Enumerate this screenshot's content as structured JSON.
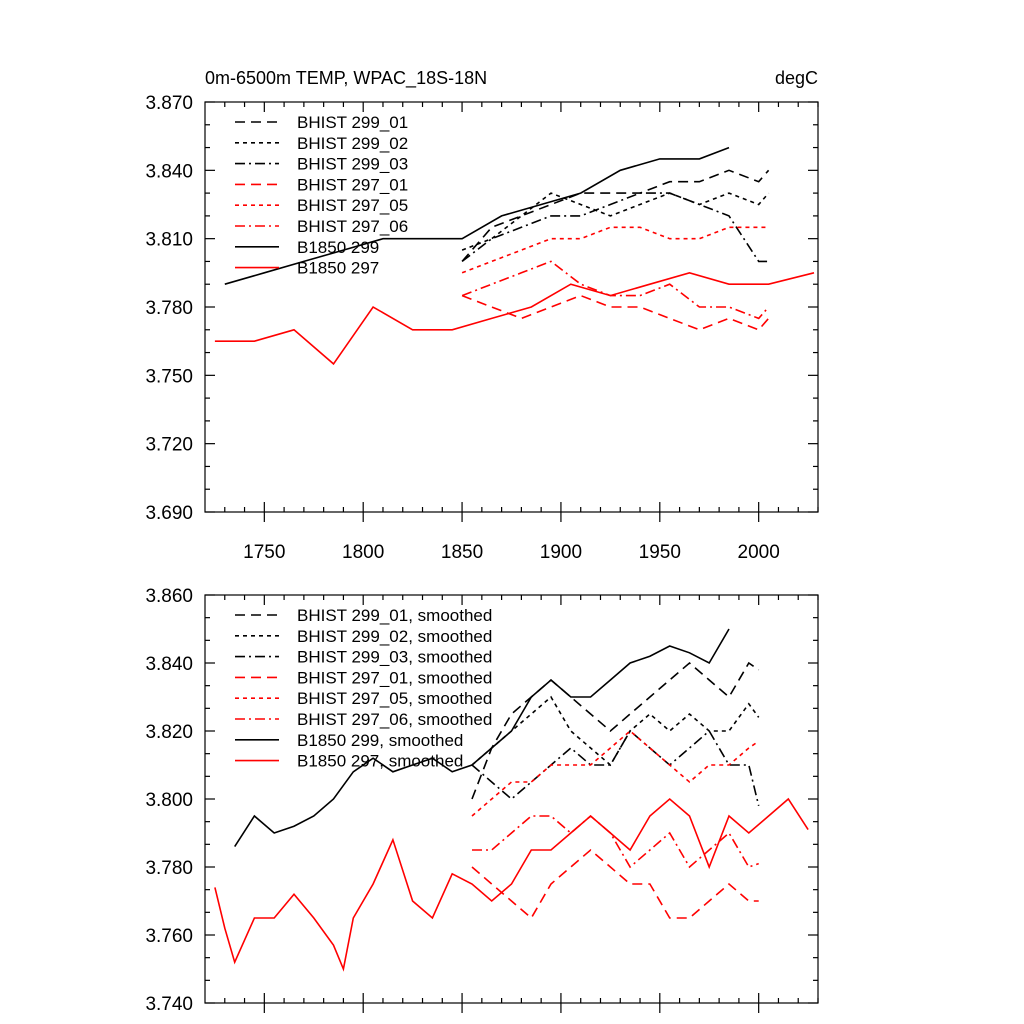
{
  "chart_data": [
    {
      "type": "line",
      "title": "0m-6500m TEMP, WPAC_18S-18N",
      "units": "degC",
      "xlim": [
        1720,
        2030
      ],
      "ylim": [
        3.69,
        3.87
      ],
      "xticks": [
        1750,
        1800,
        1850,
        1900,
        1950,
        2000
      ],
      "xtick_labels": [
        "1750",
        "1800",
        "1850",
        "1900",
        "1950",
        "2000"
      ],
      "yticks": [
        3.69,
        3.72,
        3.75,
        3.78,
        3.81,
        3.84,
        3.87
      ],
      "ytick_labels": [
        "3.690",
        "3.720",
        "3.750",
        "3.780",
        "3.810",
        "3.840",
        "3.870"
      ],
      "legend_position": "top-left",
      "series": [
        {
          "name": "BHIST 299_01",
          "color": "#000000",
          "dash": "long-dash",
          "x": [
            1850,
            1865,
            1880,
            1895,
            1910,
            1925,
            1940,
            1955,
            1970,
            1985,
            2000,
            2005
          ],
          "values": [
            3.8,
            3.815,
            3.82,
            3.825,
            3.83,
            3.83,
            3.83,
            3.835,
            3.835,
            3.84,
            3.835,
            3.84
          ]
        },
        {
          "name": "BHIST 299_02",
          "color": "#000000",
          "dash": "short-dash",
          "x": [
            1850,
            1865,
            1880,
            1895,
            1910,
            1925,
            1940,
            1955,
            1970,
            1985,
            2000,
            2005
          ],
          "values": [
            3.805,
            3.81,
            3.82,
            3.83,
            3.825,
            3.82,
            3.825,
            3.83,
            3.825,
            3.83,
            3.825,
            3.83
          ]
        },
        {
          "name": "BHIST 299_03",
          "color": "#000000",
          "dash": "dash-dot",
          "x": [
            1850,
            1865,
            1880,
            1895,
            1910,
            1925,
            1940,
            1955,
            1970,
            1985,
            2000,
            2005
          ],
          "values": [
            3.8,
            3.81,
            3.815,
            3.82,
            3.82,
            3.825,
            3.83,
            3.83,
            3.825,
            3.82,
            3.8,
            3.8
          ]
        },
        {
          "name": "BHIST 297_01",
          "color": "#ff0000",
          "dash": "long-dash",
          "x": [
            1850,
            1865,
            1880,
            1895,
            1910,
            1925,
            1940,
            1955,
            1970,
            1985,
            2000,
            2005
          ],
          "values": [
            3.785,
            3.78,
            3.775,
            3.78,
            3.785,
            3.78,
            3.78,
            3.775,
            3.77,
            3.775,
            3.77,
            3.775
          ]
        },
        {
          "name": "BHIST 297_05",
          "color": "#ff0000",
          "dash": "short-dash",
          "x": [
            1850,
            1865,
            1880,
            1895,
            1910,
            1925,
            1940,
            1955,
            1970,
            1985,
            2000,
            2005
          ],
          "values": [
            3.795,
            3.8,
            3.805,
            3.81,
            3.81,
            3.815,
            3.815,
            3.81,
            3.81,
            3.815,
            3.815,
            3.815
          ]
        },
        {
          "name": "BHIST 297_06",
          "color": "#ff0000",
          "dash": "dash-dot",
          "x": [
            1850,
            1865,
            1880,
            1895,
            1910,
            1925,
            1940,
            1955,
            1970,
            1985,
            2000,
            2005
          ],
          "values": [
            3.785,
            3.79,
            3.795,
            3.8,
            3.79,
            3.785,
            3.785,
            3.79,
            3.78,
            3.78,
            3.775,
            3.78
          ]
        },
        {
          "name": "B1850 299",
          "color": "#000000",
          "dash": "solid",
          "x": [
            1730,
            1750,
            1770,
            1790,
            1810,
            1830,
            1850,
            1870,
            1890,
            1910,
            1930,
            1950,
            1970,
            1985
          ],
          "values": [
            3.79,
            3.795,
            3.8,
            3.805,
            3.81,
            3.81,
            3.81,
            3.82,
            3.825,
            3.83,
            3.84,
            3.845,
            3.845,
            3.85
          ]
        },
        {
          "name": "B1850 297",
          "color": "#ff0000",
          "dash": "solid",
          "x": [
            1725,
            1745,
            1765,
            1785,
            1805,
            1825,
            1845,
            1865,
            1885,
            1905,
            1925,
            1945,
            1965,
            1985,
            2005,
            2028
          ],
          "values": [
            3.765,
            3.765,
            3.77,
            3.755,
            3.78,
            3.77,
            3.77,
            3.775,
            3.78,
            3.79,
            3.785,
            3.79,
            3.795,
            3.79,
            3.79,
            3.795
          ]
        }
      ]
    },
    {
      "type": "line",
      "title": "",
      "units": "",
      "xlim": [
        1720,
        2030
      ],
      "ylim": [
        3.74,
        3.86
      ],
      "xticks": [
        1750,
        1800,
        1850,
        1900,
        1950,
        2000
      ],
      "xtick_labels": [],
      "yticks": [
        3.74,
        3.76,
        3.78,
        3.8,
        3.82,
        3.84,
        3.86
      ],
      "ytick_labels": [
        "3.740",
        "3.760",
        "3.780",
        "3.800",
        "3.820",
        "3.840",
        "3.860"
      ],
      "legend_position": "top-left",
      "series": [
        {
          "name": "BHIST 299_01, smoothed",
          "color": "#000000",
          "dash": "long-dash",
          "x": [
            1855,
            1865,
            1875,
            1885,
            1895,
            1905,
            1915,
            1925,
            1935,
            1945,
            1955,
            1965,
            1975,
            1985,
            1995,
            2000
          ],
          "values": [
            3.8,
            3.815,
            3.825,
            3.83,
            3.835,
            3.83,
            3.825,
            3.82,
            3.825,
            3.83,
            3.835,
            3.84,
            3.835,
            3.83,
            3.84,
            3.838
          ]
        },
        {
          "name": "BHIST 299_02, smoothed",
          "color": "#000000",
          "dash": "short-dash",
          "x": [
            1855,
            1865,
            1875,
            1885,
            1895,
            1905,
            1915,
            1925,
            1935,
            1945,
            1955,
            1965,
            1975,
            1985,
            1995,
            2000
          ],
          "values": [
            3.81,
            3.815,
            3.82,
            3.825,
            3.83,
            3.82,
            3.815,
            3.81,
            3.82,
            3.825,
            3.82,
            3.825,
            3.82,
            3.82,
            3.828,
            3.824
          ]
        },
        {
          "name": "BHIST 299_03, smoothed",
          "color": "#000000",
          "dash": "dash-dot",
          "x": [
            1855,
            1865,
            1875,
            1885,
            1895,
            1905,
            1915,
            1925,
            1935,
            1945,
            1955,
            1965,
            1975,
            1985,
            1995,
            2000
          ],
          "values": [
            3.81,
            3.805,
            3.8,
            3.805,
            3.81,
            3.815,
            3.81,
            3.81,
            3.82,
            3.815,
            3.81,
            3.815,
            3.82,
            3.81,
            3.81,
            3.798
          ]
        },
        {
          "name": "BHIST 297_01, smoothed",
          "color": "#ff0000",
          "dash": "long-dash",
          "x": [
            1855,
            1865,
            1875,
            1885,
            1895,
            1905,
            1915,
            1925,
            1935,
            1945,
            1955,
            1965,
            1975,
            1985,
            1995,
            2000
          ],
          "values": [
            3.78,
            3.775,
            3.77,
            3.765,
            3.775,
            3.78,
            3.785,
            3.78,
            3.775,
            3.775,
            3.765,
            3.765,
            3.77,
            3.775,
            3.77,
            3.77
          ]
        },
        {
          "name": "BHIST 297_05, smoothed",
          "color": "#ff0000",
          "dash": "short-dash",
          "x": [
            1855,
            1865,
            1875,
            1885,
            1895,
            1905,
            1915,
            1925,
            1935,
            1945,
            1955,
            1965,
            1975,
            1985,
            1995,
            2000
          ],
          "values": [
            3.795,
            3.8,
            3.805,
            3.805,
            3.81,
            3.81,
            3.81,
            3.815,
            3.82,
            3.815,
            3.81,
            3.805,
            3.81,
            3.81,
            3.815,
            3.817
          ]
        },
        {
          "name": "BHIST 297_06, smoothed",
          "color": "#ff0000",
          "dash": "dash-dot",
          "x": [
            1855,
            1865,
            1875,
            1885,
            1895,
            1905,
            1915,
            1925,
            1935,
            1945,
            1955,
            1965,
            1975,
            1985,
            1995,
            2000
          ],
          "values": [
            3.785,
            3.785,
            3.79,
            3.795,
            3.795,
            3.79,
            3.795,
            3.79,
            3.78,
            3.785,
            3.79,
            3.78,
            3.785,
            3.79,
            3.78,
            3.781
          ]
        },
        {
          "name": "B1850 299, smoothed",
          "color": "#000000",
          "dash": "solid",
          "x": [
            1735,
            1745,
            1755,
            1765,
            1775,
            1785,
            1795,
            1805,
            1815,
            1825,
            1835,
            1845,
            1855,
            1865,
            1875,
            1885,
            1895,
            1905,
            1915,
            1925,
            1935,
            1945,
            1955,
            1965,
            1975,
            1985
          ],
          "values": [
            3.786,
            3.795,
            3.79,
            3.792,
            3.795,
            3.8,
            3.808,
            3.812,
            3.808,
            3.81,
            3.812,
            3.808,
            3.81,
            3.815,
            3.82,
            3.83,
            3.835,
            3.83,
            3.83,
            3.835,
            3.84,
            3.842,
            3.845,
            3.843,
            3.84,
            3.85
          ]
        },
        {
          "name": "B1850 297, smoothed",
          "color": "#ff0000",
          "dash": "solid",
          "x": [
            1725,
            1730,
            1735,
            1745,
            1755,
            1765,
            1775,
            1785,
            1790,
            1795,
            1805,
            1815,
            1825,
            1835,
            1845,
            1855,
            1865,
            1875,
            1885,
            1895,
            1905,
            1915,
            1925,
            1935,
            1945,
            1955,
            1965,
            1975,
            1985,
            1995,
            2005,
            2015,
            2025
          ],
          "values": [
            3.774,
            3.762,
            3.752,
            3.765,
            3.765,
            3.772,
            3.765,
            3.757,
            3.75,
            3.765,
            3.775,
            3.788,
            3.77,
            3.765,
            3.778,
            3.775,
            3.77,
            3.775,
            3.785,
            3.785,
            3.79,
            3.795,
            3.79,
            3.785,
            3.795,
            3.8,
            3.795,
            3.78,
            3.795,
            3.79,
            3.795,
            3.8,
            3.791
          ]
        }
      ]
    }
  ]
}
